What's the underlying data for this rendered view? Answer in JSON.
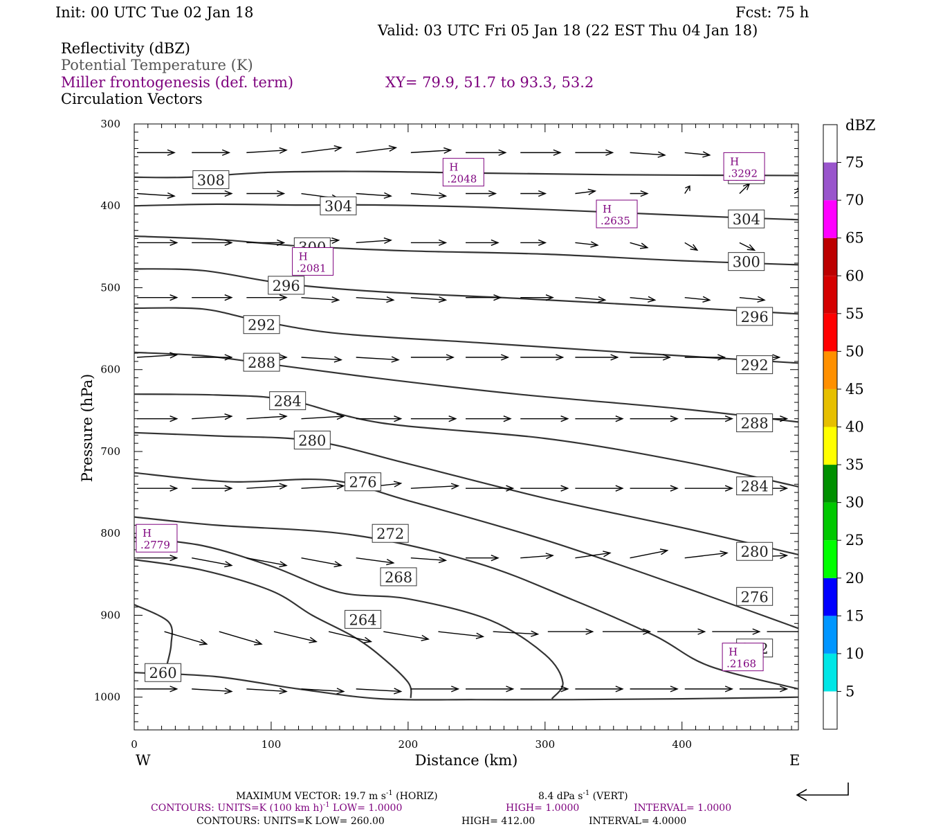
{
  "header": {
    "init": "Init: 00 UTC Tue 02 Jan 18",
    "fcst": "Fcst:   75 h",
    "valid": "Valid: 03 UTC Fri 05 Jan 18 (22 EST Thu 04 Jan 18)",
    "field1": "Reflectivity (dBZ)",
    "field2": "Potential Temperature (K)",
    "field3": "Miller frontogenesis (def. term)",
    "xy": "XY=  79.9, 51.7 to  93.3, 53.2",
    "field4": "Circulation Vectors"
  },
  "footer": {
    "line1_a": "MAXIMUM VECTOR:  19.7 m s",
    "line1_b": " (HORIZ)",
    "line1_c": "8.4 dPa s",
    "line1_d": " (VERT)",
    "sup": "-1",
    "line2_a": "CONTOURS:  UNITS=K (100 km h)",
    "line2_b": "  LOW=   1.0000",
    "line2_c": "HIGH=   1.0000",
    "line2_d": "INTERVAL=    1.0000",
    "line3_a": "CONTOURS:  UNITS=K  LOW=   260.00",
    "line3_b": "HIGH=   412.00",
    "line3_c": "INTERVAL=    4.0000"
  },
  "colors": {
    "theta": "#333333",
    "frontogenesis": "#7d007d",
    "text": "#000000"
  },
  "chart_data": {
    "type": "contour-cross-section",
    "xlabel": "Distance (km)",
    "ylabel": "Pressure (hPa)",
    "xlim": [
      0,
      485
    ],
    "ylim": [
      1040,
      300
    ],
    "x_ticks": [
      0,
      100,
      200,
      300,
      400
    ],
    "y_ticks": [
      300,
      400,
      500,
      600,
      700,
      800,
      900,
      1000
    ],
    "x_end_labels": {
      "left": "W",
      "right": "E"
    },
    "colorbar": {
      "unit": "dBZ",
      "ticks": [
        5,
        10,
        15,
        20,
        25,
        30,
        35,
        40,
        45,
        50,
        55,
        60,
        65,
        70,
        75
      ],
      "colors": [
        "#ffffff",
        "#00e6e6",
        "#0096ff",
        "#0000ff",
        "#00ff00",
        "#00c800",
        "#009000",
        "#ffff00",
        "#e6bf00",
        "#ff9000",
        "#ff0000",
        "#d40000",
        "#bc0000",
        "#ff00ff",
        "#9955cc",
        "#ffffff"
      ]
    },
    "theta_contours": [
      {
        "value": 308,
        "points": [
          [
            0,
            365
          ],
          [
            40,
            365
          ],
          [
            100,
            359
          ],
          [
            170,
            358
          ],
          [
            250,
            360
          ],
          [
            350,
            362
          ],
          [
            485,
            363
          ]
        ],
        "labels": [
          [
            56,
            368
          ],
          [
            447,
            362
          ]
        ]
      },
      {
        "value": 304,
        "points": [
          [
            0,
            400
          ],
          [
            60,
            398
          ],
          [
            120,
            399
          ],
          [
            180,
            399
          ],
          [
            260,
            402
          ],
          [
            350,
            408
          ],
          [
            420,
            413
          ],
          [
            485,
            417
          ]
        ],
        "labels": [
          [
            149,
            400
          ],
          [
            447,
            416
          ]
        ]
      },
      {
        "value": 300,
        "points": [
          [
            0,
            437
          ],
          [
            60,
            441
          ],
          [
            120,
            449
          ],
          [
            200,
            455
          ],
          [
            300,
            459
          ],
          [
            400,
            467
          ],
          [
            485,
            472
          ]
        ],
        "labels": [
          [
            130,
            450
          ],
          [
            447,
            468
          ]
        ]
      },
      {
        "value": 296,
        "points": [
          [
            0,
            477
          ],
          [
            50,
            479
          ],
          [
            110,
            495
          ],
          [
            180,
            505
          ],
          [
            280,
            513
          ],
          [
            400,
            524
          ],
          [
            485,
            532
          ]
        ],
        "labels": [
          [
            111,
            497
          ],
          [
            453,
            535
          ]
        ]
      },
      {
        "value": 292,
        "points": [
          [
            0,
            525
          ],
          [
            50,
            526
          ],
          [
            93,
            541
          ],
          [
            150,
            556
          ],
          [
            250,
            567
          ],
          [
            350,
            578
          ],
          [
            485,
            592
          ]
        ],
        "labels": [
          [
            93,
            545
          ],
          [
            453,
            594
          ]
        ]
      },
      {
        "value": 288,
        "points": [
          [
            0,
            579
          ],
          [
            50,
            583
          ],
          [
            93,
            592
          ],
          [
            180,
            611
          ],
          [
            280,
            630
          ],
          [
            400,
            648
          ],
          [
            485,
            664
          ]
        ],
        "labels": [
          [
            93,
            591
          ],
          [
            453,
            665
          ]
        ]
      },
      {
        "value": 284,
        "points": [
          [
            0,
            630
          ],
          [
            60,
            631
          ],
          [
            112,
            637
          ],
          [
            180,
            665
          ],
          [
            300,
            684
          ],
          [
            400,
            712
          ],
          [
            485,
            743
          ]
        ],
        "labels": [
          [
            112,
            638
          ],
          [
            453,
            742
          ]
        ]
      },
      {
        "value": 280,
        "points": [
          [
            0,
            677
          ],
          [
            60,
            681
          ],
          [
            130,
            687
          ],
          [
            200,
            715
          ],
          [
            300,
            757
          ],
          [
            400,
            793
          ],
          [
            485,
            826
          ]
        ],
        "labels": [
          [
            130,
            686
          ],
          [
            453,
            822
          ]
        ]
      },
      {
        "value": 276,
        "points": [
          [
            0,
            726
          ],
          [
            70,
            737
          ],
          [
            143,
            735
          ],
          [
            200,
            760
          ],
          [
            300,
            808
          ],
          [
            400,
            865
          ],
          [
            485,
            916
          ]
        ],
        "labels": [
          [
            167,
            737
          ],
          [
            453,
            877
          ]
        ]
      },
      {
        "value": 272,
        "points": [
          [
            0,
            780
          ],
          [
            60,
            790
          ],
          [
            160,
            802
          ],
          [
            250,
            836
          ],
          [
            320,
            881
          ],
          [
            380,
            925
          ],
          [
            420,
            962
          ],
          [
            485,
            990
          ]
        ],
        "labels": [
          [
            187,
            800
          ],
          [
            453,
            940
          ]
        ]
      },
      {
        "value": 268,
        "points": [
          [
            0,
            805
          ],
          [
            50,
            815
          ],
          [
            100,
            840
          ],
          [
            150,
            872
          ],
          [
            200,
            880
          ],
          [
            260,
            906
          ],
          [
            300,
            948
          ],
          [
            313,
            982
          ],
          [
            305,
            1002
          ]
        ],
        "labels": [
          [
            193,
            853
          ]
        ]
      },
      {
        "value": 264,
        "points": [
          [
            0,
            832
          ],
          [
            50,
            845
          ],
          [
            100,
            870
          ],
          [
            130,
            900
          ],
          [
            160,
            926
          ],
          [
            180,
            950
          ],
          [
            200,
            982
          ],
          [
            202,
            1001
          ]
        ],
        "labels": [
          [
            167,
            905
          ]
        ]
      },
      {
        "value": 260,
        "points": [
          [
            0,
            887
          ],
          [
            25,
            908
          ],
          [
            27,
            935
          ],
          [
            24,
            960
          ]
        ],
        "labels": [
          [
            21,
            970
          ]
        ]
      },
      {
        "value": 260,
        "points": [
          [
            0,
            970
          ],
          [
            60,
            975
          ],
          [
            120,
            990
          ],
          [
            180,
            1002
          ],
          [
            250,
            1003
          ],
          [
            320,
            1003
          ],
          [
            400,
            1002
          ],
          [
            485,
            1000
          ]
        ],
        "labels": []
      }
    ],
    "frontogenesis_maxima": [
      {
        "label": "H",
        "value": ".2048",
        "x": 227,
        "p": 353
      },
      {
        "label": "H",
        "value": ".3292",
        "x": 432,
        "p": 346
      },
      {
        "label": "H",
        "value": ".2635",
        "x": 339,
        "p": 404
      },
      {
        "label": "H",
        "value": ".2081",
        "x": 117,
        "p": 462
      },
      {
        "label": "H",
        "value": ".2779",
        "x": 3,
        "p": 800
      },
      {
        "label": "H",
        "value": ".2168",
        "x": 431,
        "p": 945
      }
    ],
    "vector_rows": [
      {
        "p": 335,
        "x": [
          0,
          40,
          80,
          120,
          160,
          200,
          240,
          280,
          320,
          360,
          400,
          440
        ],
        "u": [
          1.5,
          1.5,
          1.6,
          1.6,
          1.6,
          1.6,
          1.6,
          1.6,
          1.5,
          1.4,
          1.0,
          0.6
        ],
        "w": [
          0,
          0,
          0.1,
          0.2,
          0.2,
          0.1,
          0,
          0,
          0,
          -0.1,
          -0.1,
          -0.2
        ]
      },
      {
        "p": 385,
        "x": [
          0,
          40,
          80,
          120,
          160,
          200,
          240,
          280,
          320,
          360,
          400,
          440,
          480
        ],
        "u": [
          1.5,
          1.6,
          1.5,
          1.5,
          1.4,
          1.4,
          1.2,
          1.0,
          0.8,
          0.7,
          0.2,
          0.4,
          0.3
        ],
        "w": [
          -0.1,
          0,
          0,
          -0.2,
          -0.1,
          -0.1,
          0,
          0,
          0.1,
          0,
          0.3,
          0.4,
          0.2
        ]
      },
      {
        "p": 445,
        "x": [
          0,
          40,
          80,
          120,
          160,
          200,
          240,
          280,
          320,
          360,
          400,
          440
        ],
        "u": [
          1.6,
          1.6,
          1.5,
          1.5,
          1.4,
          1.4,
          1.3,
          1.0,
          0.9,
          0.7,
          0.5,
          0.6
        ],
        "w": [
          0,
          0,
          0,
          0.1,
          0.1,
          0,
          0,
          0,
          -0.1,
          -0.2,
          -0.3,
          -0.3
        ]
      },
      {
        "p": 512,
        "x": [
          0,
          40,
          80,
          120,
          160,
          200,
          240,
          280,
          320,
          360,
          400,
          440
        ],
        "u": [
          1.6,
          1.6,
          1.6,
          1.5,
          1.5,
          1.4,
          1.4,
          1.3,
          1.2,
          1.0,
          1.0,
          1.0
        ],
        "w": [
          0,
          0,
          0,
          -0.1,
          -0.1,
          -0.1,
          0,
          0,
          -0.1,
          -0.1,
          -0.1,
          -0.1
        ]
      },
      {
        "p": 585,
        "x": [
          0,
          40,
          80,
          120,
          160,
          200,
          240,
          280,
          320,
          360,
          400,
          440
        ],
        "u": [
          1.6,
          1.6,
          1.6,
          1.6,
          1.7,
          1.7,
          1.7,
          1.7,
          1.7,
          1.6,
          1.6,
          1.6
        ],
        "w": [
          0.1,
          0,
          0,
          -0.1,
          -0.1,
          0,
          0,
          0,
          0,
          0,
          0,
          0
        ]
      },
      {
        "p": 660,
        "x": [
          0,
          40,
          80,
          120,
          160,
          200,
          240,
          280,
          320,
          360,
          400,
          440
        ],
        "u": [
          1.6,
          1.6,
          1.6,
          1.7,
          1.8,
          1.8,
          1.8,
          1.9,
          1.9,
          1.9,
          1.9,
          1.9
        ],
        "w": [
          0,
          0.1,
          0.1,
          0.1,
          0,
          0,
          0,
          0,
          0,
          0,
          0,
          0
        ]
      },
      {
        "p": 745,
        "x": [
          0,
          40,
          80,
          120,
          160,
          200,
          240,
          280,
          320,
          360,
          400,
          440
        ],
        "u": [
          1.6,
          1.6,
          1.6,
          1.7,
          1.8,
          1.9,
          1.9,
          1.9,
          1.9,
          1.9,
          1.9,
          1.9
        ],
        "w": [
          0,
          0,
          0.1,
          0.1,
          0.2,
          0.1,
          0,
          0,
          0,
          0,
          0,
          0
        ]
      },
      {
        "p": 830,
        "x": [
          0,
          40,
          80,
          120,
          160,
          200,
          240,
          280,
          320,
          360,
          400,
          440
        ],
        "u": [
          1.6,
          1.6,
          1.6,
          1.6,
          1.5,
          1.4,
          1.3,
          1.3,
          1.4,
          1.5,
          1.7,
          1.9
        ],
        "w": [
          0,
          -0.3,
          -0.3,
          -0.3,
          -0.2,
          -0.1,
          0,
          0.1,
          0.2,
          0.3,
          0.2,
          0.1
        ]
      },
      {
        "p": 920,
        "x": [
          20,
          60,
          100,
          140,
          180,
          220,
          260,
          300,
          340,
          380,
          420,
          460
        ],
        "u": [
          1.7,
          1.7,
          1.7,
          1.7,
          1.8,
          1.8,
          1.8,
          1.8,
          1.9,
          1.9,
          1.9,
          1.9
        ],
        "w": [
          -0.5,
          -0.5,
          -0.4,
          -0.4,
          -0.3,
          -0.2,
          -0.1,
          0,
          0,
          0,
          0,
          0
        ]
      },
      {
        "p": 990,
        "x": [
          0,
          40,
          80,
          120,
          160,
          200,
          240,
          280,
          320,
          360,
          400,
          440
        ],
        "u": [
          1.6,
          1.6,
          1.6,
          1.7,
          1.8,
          1.9,
          1.9,
          1.9,
          1.9,
          1.9,
          1.9,
          1.9
        ],
        "w": [
          0,
          -0.1,
          -0.1,
          -0.1,
          -0.1,
          0,
          0,
          0,
          0,
          0,
          0,
          0
        ]
      }
    ]
  }
}
